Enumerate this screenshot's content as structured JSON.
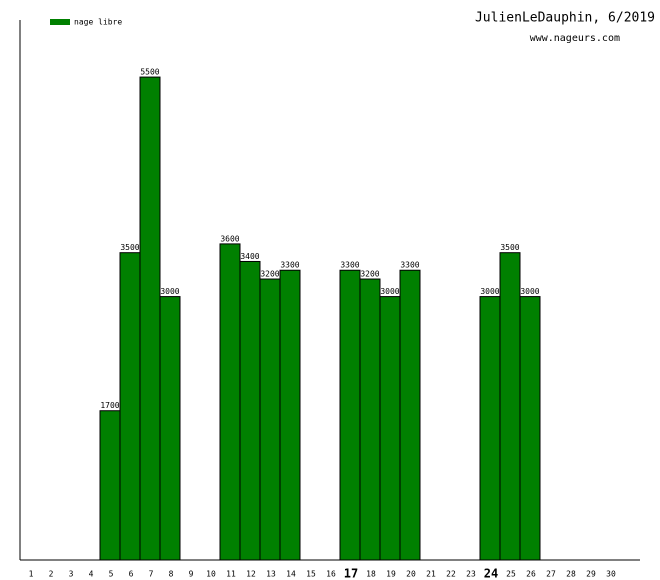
{
  "chart_data": {
    "type": "bar",
    "title": "JulienLeDauphin, 6/2019",
    "subtitle": "www.nageurs.com",
    "categories": [
      "1",
      "2",
      "3",
      "4",
      "5",
      "6",
      "7",
      "8",
      "9",
      "10",
      "11",
      "12",
      "13",
      "14",
      "15",
      "16",
      "17",
      "18",
      "19",
      "20",
      "21",
      "22",
      "23",
      "24",
      "25",
      "26",
      "27",
      "28",
      "29",
      "30"
    ],
    "series": [
      {
        "name": "nage libre",
        "color": "#008000",
        "values": [
          null,
          null,
          null,
          null,
          1700,
          3500,
          5500,
          3000,
          null,
          null,
          3600,
          3400,
          3200,
          3300,
          null,
          null,
          3300,
          3200,
          3000,
          3300,
          null,
          null,
          null,
          3000,
          3500,
          3000,
          null,
          null,
          null,
          null
        ]
      }
    ],
    "ylim": [
      0,
      6150
    ],
    "highlight_indices": [
      16,
      23
    ],
    "legend": "top-left"
  }
}
